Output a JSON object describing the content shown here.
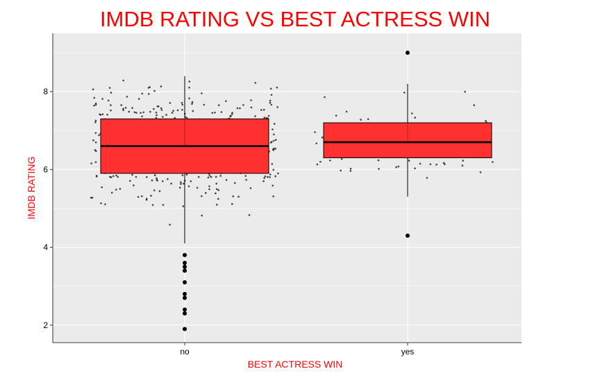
{
  "chart_data": {
    "type": "boxplot",
    "title": "IMDB RATING VS BEST ACTRESS WIN",
    "xlabel": "BEST ACTRESS WIN",
    "ylabel": "IMDB RATING",
    "categories": [
      "no",
      "yes"
    ],
    "ylim": [
      1.55,
      9.5
    ],
    "yticks": [
      2,
      4,
      6,
      8
    ],
    "grid": true,
    "legend": "none",
    "colors": {
      "box_fill": "#ff3030",
      "panel": "#ebebeb",
      "grid": "#ffffff",
      "text_accent": "#ff0000"
    },
    "boxes": [
      {
        "category": "no",
        "min": 4.1,
        "q1": 5.9,
        "median": 6.6,
        "q3": 7.3,
        "max": 8.4,
        "outliers": [
          3.8,
          3.6,
          3.5,
          3.4,
          3.1,
          2.8,
          2.7,
          2.4,
          2.3,
          1.9
        ]
      },
      {
        "category": "yes",
        "min": 5.3,
        "q1": 6.3,
        "median": 6.7,
        "q3": 7.2,
        "max": 8.2,
        "outliers": [
          9.0,
          4.3
        ]
      }
    ],
    "jitter": [
      {
        "category": "no",
        "n": 560,
        "approx_range": [
          1.9,
          8.5
        ]
      },
      {
        "category": "yes",
        "n": 75,
        "approx_range": [
          4.3,
          9.0
        ]
      }
    ]
  }
}
